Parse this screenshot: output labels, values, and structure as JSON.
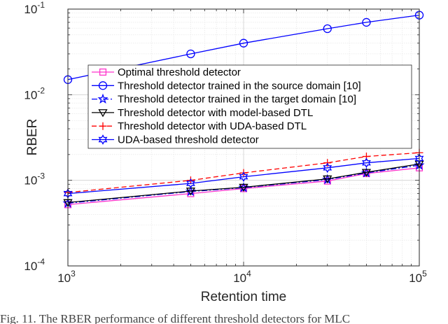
{
  "chart_data": {
    "type": "line",
    "xlabel": "Retention time",
    "ylabel": "RBER",
    "xscale": "log",
    "yscale": "log",
    "xlim": [
      1000,
      100000
    ],
    "ylim": [
      0.0001,
      0.1
    ],
    "grid": true,
    "legend_position": "top-right",
    "x_ticks": [
      {
        "base": "10",
        "exp": "3"
      },
      {
        "base": "10",
        "exp": "4"
      },
      {
        "base": "10",
        "exp": "5"
      }
    ],
    "y_ticks": [
      {
        "base": "10",
        "exp": "-1"
      },
      {
        "base": "10",
        "exp": "-2"
      },
      {
        "base": "10",
        "exp": "-3"
      },
      {
        "base": "10",
        "exp": "-4"
      }
    ],
    "series": [
      {
        "name": "Optimal threshold detector",
        "color": "#ff33cc",
        "dash": "solid",
        "marker": "square",
        "x": [
          1000,
          5000,
          10000,
          30000,
          50000,
          100000
        ],
        "y": [
          0.00052,
          0.0007,
          0.0008,
          0.00098,
          0.0012,
          0.0014
        ]
      },
      {
        "name": "Threshold detector trained in the source domain [10]",
        "color": "#0000ff",
        "dash": "solid",
        "marker": "circle",
        "x": [
          1000,
          5000,
          10000,
          30000,
          50000,
          100000
        ],
        "y": [
          0.015,
          0.03,
          0.04,
          0.059,
          0.07,
          0.085
        ]
      },
      {
        "name": "Threshold detector trained in the target domain [10]",
        "color": "#0000ff",
        "dash": "dashdot",
        "marker": "star",
        "x": [
          1000,
          5000,
          10000,
          30000,
          50000,
          100000
        ],
        "y": [
          0.00054,
          0.00074,
          0.00082,
          0.00102,
          0.00122,
          0.0015
        ]
      },
      {
        "name": "Threshold detector with model-based DTL",
        "color": "#000000",
        "dash": "solid",
        "marker": "triangle-down",
        "x": [
          1000,
          5000,
          10000,
          30000,
          50000,
          100000
        ],
        "y": [
          0.00055,
          0.00075,
          0.00083,
          0.00104,
          0.00124,
          0.00155
        ]
      },
      {
        "name": "Threshold detector with UDA-based DTL",
        "color": "#ff0000",
        "dash": "dashed",
        "marker": "plus",
        "x": [
          1000,
          5000,
          10000,
          30000,
          50000,
          100000
        ],
        "y": [
          0.00072,
          0.001,
          0.00122,
          0.0016,
          0.0019,
          0.0021
        ]
      },
      {
        "name": "UDA-based threshold detector",
        "color": "#0000ff",
        "dash": "solid",
        "marker": "hexagram",
        "x": [
          1000,
          5000,
          10000,
          30000,
          50000,
          100000
        ],
        "y": [
          0.0007,
          0.00092,
          0.0011,
          0.0014,
          0.0016,
          0.0018
        ]
      }
    ]
  },
  "caption": "Fig. 11.   The RBER performance of different threshold detectors for MLC"
}
